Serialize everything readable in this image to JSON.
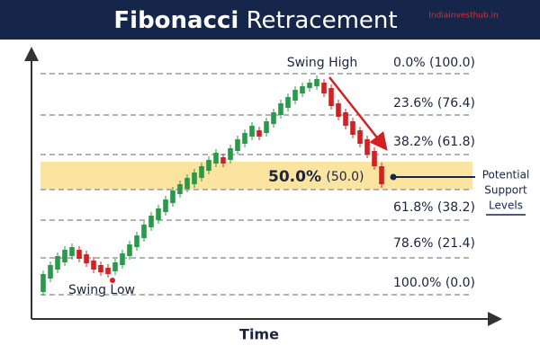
{
  "header": {
    "title_bold": "Fibonacci",
    "title_rest": "Retracement",
    "watermark": "Indiainvesthub.in"
  },
  "x_axis_label": "Time",
  "levels": {
    "l0": "0.0% (100.0)",
    "l236": "23.6% (76.4)",
    "l382": "38.2% (61.8)",
    "l50_pct": "50.0%",
    "l50_val": "(50.0)",
    "l618": "61.8% (38.2)",
    "l786": "78.6% (21.4)",
    "l100": "100.0% (0.0)"
  },
  "annotations": {
    "swing_high": "Swing High",
    "swing_low": "Swing Low",
    "support": [
      "Potential",
      "Support",
      "Levels"
    ]
  }
}
